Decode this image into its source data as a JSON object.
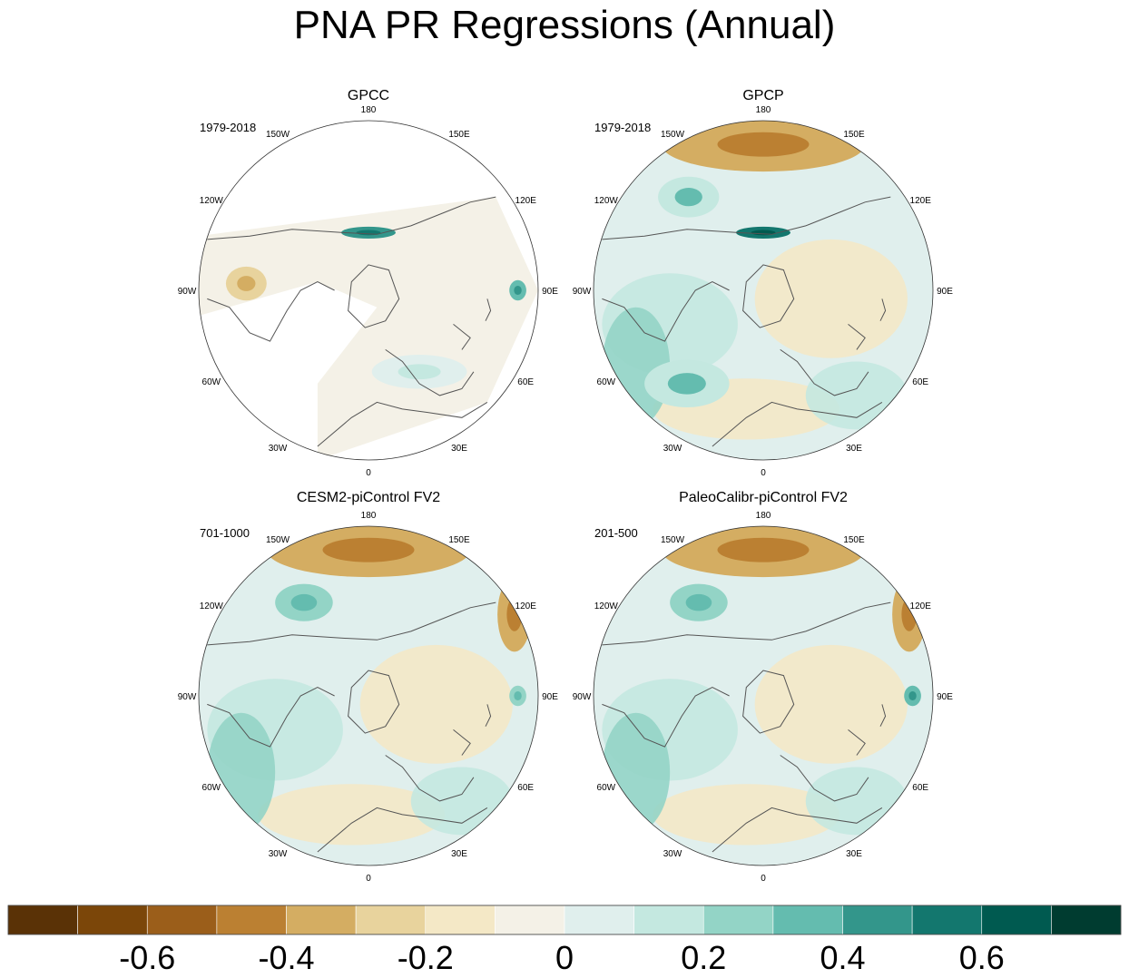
{
  "title": "PNA PR Regressions (Annual)",
  "chart_data": {
    "type": "polar-contour-map",
    "title": "PNA PR Regressions (Annual)",
    "projection": "north-polar-stereographic",
    "longitude_labels": [
      "180",
      "150E",
      "120E",
      "90E",
      "60E",
      "30E",
      "0",
      "30W",
      "60W",
      "90W",
      "120W",
      "150W"
    ],
    "panels": [
      {
        "name": "GPCC",
        "period": "1979-2018",
        "coverage": "land-only",
        "features": [
          {
            "region": "north-pacific-coast",
            "value": 0.5
          },
          {
            "region": "tibetan-plateau",
            "value": 0.4
          },
          {
            "region": "north-american-interior",
            "value": -0.2
          },
          {
            "region": "europe",
            "value": 0.1
          }
        ]
      },
      {
        "name": "GPCP",
        "period": "1979-2018",
        "coverage": "global",
        "features": [
          {
            "region": "north-pacific",
            "value": -0.3
          },
          {
            "region": "north-pacific-coast",
            "value": 0.6
          },
          {
            "region": "subtropical-atlantic",
            "value": 0.2
          },
          {
            "region": "eastern-pacific",
            "value": 0.2
          }
        ]
      },
      {
        "name": "CESM2-piControl FV2",
        "period": "701-1000",
        "coverage": "global",
        "features": [
          {
            "region": "north-pacific",
            "value": -0.3
          },
          {
            "region": "gulf-of-alaska",
            "value": 0.3
          },
          {
            "region": "western-pacific",
            "value": -0.3
          },
          {
            "region": "tibetan-plateau",
            "value": 0.3
          }
        ]
      },
      {
        "name": "PaleoCalibr-piControl FV2",
        "period": "201-500",
        "coverage": "global",
        "features": [
          {
            "region": "north-pacific",
            "value": -0.3
          },
          {
            "region": "gulf-of-alaska",
            "value": 0.3
          },
          {
            "region": "western-pacific",
            "value": -0.3
          },
          {
            "region": "tibetan-plateau",
            "value": 0.4
          }
        ]
      }
    ],
    "colorbar": {
      "levels": [
        -0.7,
        -0.6,
        -0.5,
        -0.4,
        -0.3,
        -0.2,
        -0.1,
        0,
        0.1,
        0.2,
        0.3,
        0.4,
        0.5,
        0.6,
        0.7
      ],
      "tick_labels": [
        "-0.6",
        "-0.4",
        "-0.2",
        "0",
        "0.2",
        "0.4",
        "0.6"
      ],
      "tick_values": [
        -0.6,
        -0.4,
        -0.2,
        0,
        0.2,
        0.4,
        0.6
      ],
      "colors": [
        "#5a3206",
        "#7b4609",
        "#9b5e1a",
        "#bb8032",
        "#d4ad62",
        "#e8d39d",
        "#f4e8c6",
        "#f4f1e7",
        "#e0efed",
        "#c4e8e0",
        "#93d4c6",
        "#64bcaf",
        "#33968b",
        "#13776e",
        "#005a50",
        "#003c30"
      ]
    }
  }
}
